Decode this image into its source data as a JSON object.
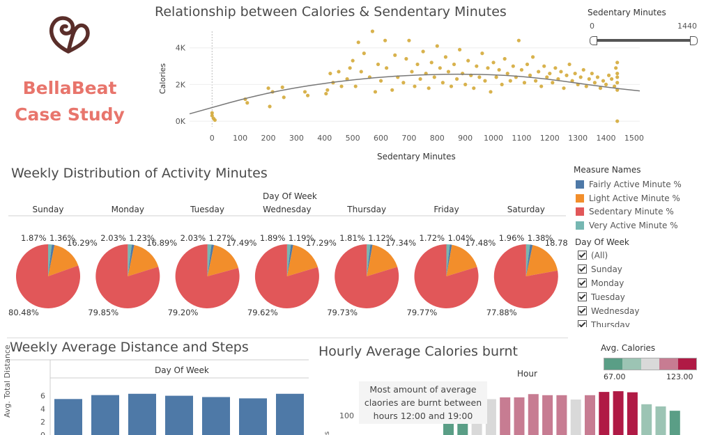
{
  "brand": {
    "line1": "BellaBeat",
    "line2": "Case Study",
    "logo_icon": "heart-swirl-icon",
    "logo_color": "#5a2e2a",
    "text_color": "#e8756c"
  },
  "scatter_title": "Relationship between Calories & Sendentary Minutes",
  "slider": {
    "label": "Sedentary Minutes",
    "min_label": "0",
    "max_label": "1440",
    "min": 0,
    "max": 1440,
    "range": [
      0,
      1440
    ]
  },
  "weekly_title": "Weekly Distribution of Activity Minutes",
  "distance_title": "Weekly Average Distance and Steps",
  "hourly_title": "Hourly Average Calories burnt",
  "annotation": {
    "line1": "Most amount of average",
    "line2": "claories are burnt between",
    "line3": "hours 12:00 and 19:00"
  },
  "legend": {
    "title": "Measure Names",
    "items": [
      {
        "label": "Fairly Active Minute %",
        "color": "#4e79a7"
      },
      {
        "label": "Light Active Minute %",
        "color": "#f28e2b"
      },
      {
        "label": "Sedentary Minute %",
        "color": "#e15759"
      },
      {
        "label": "Very Active Minute %",
        "color": "#76b7b2"
      }
    ]
  },
  "day_filter": {
    "title": "Day Of Week",
    "items": [
      "(All)",
      "Sunday",
      "Monday",
      "Tuesday",
      "Wednesday",
      "Thursday"
    ]
  },
  "avg_calories_legend": {
    "title": "Avg. Calories",
    "min_label": "67.00",
    "max_label": "123.00",
    "colors": [
      "#5a9e86",
      "#9cc4b4",
      "#d9d9d9",
      "#c77c92",
      "#b01a45"
    ]
  },
  "chart_data": [
    {
      "type": "scatter",
      "title": "Relationship between Calories & Sendentary Minutes",
      "xlabel": "Sedentary Minutes",
      "ylabel": "Calories",
      "x_ticks": [
        "0",
        "100",
        "200",
        "300",
        "400",
        "500",
        "600",
        "700",
        "800",
        "900",
        "1000",
        "1100",
        "1200",
        "1300",
        "1400",
        "1500"
      ],
      "y_ticks": [
        "0K",
        "2K",
        "4K"
      ],
      "xlim": [
        -80,
        1520
      ],
      "ylim": [
        -300,
        4900
      ],
      "trend": {
        "type": "polynomial",
        "points": [
          [
            -80,
            400
          ],
          [
            200,
            1600
          ],
          [
            500,
            2300
          ],
          [
            800,
            2600
          ],
          [
            1100,
            2500
          ],
          [
            1400,
            1850
          ],
          [
            1520,
            1650
          ]
        ]
      },
      "color": "#d4aa3a",
      "points": [
        [
          0,
          300
        ],
        [
          0,
          450
        ],
        [
          5,
          150
        ],
        [
          10,
          60
        ],
        [
          118,
          1200
        ],
        [
          125,
          1000
        ],
        [
          200,
          1800
        ],
        [
          205,
          800
        ],
        [
          215,
          1600
        ],
        [
          250,
          1850
        ],
        [
          255,
          1300
        ],
        [
          330,
          1600
        ],
        [
          340,
          1400
        ],
        [
          405,
          1500
        ],
        [
          410,
          1700
        ],
        [
          420,
          2600
        ],
        [
          430,
          2100
        ],
        [
          450,
          2700
        ],
        [
          460,
          1900
        ],
        [
          480,
          2300
        ],
        [
          490,
          2900
        ],
        [
          500,
          3300
        ],
        [
          510,
          1900
        ],
        [
          520,
          4300
        ],
        [
          530,
          2700
        ],
        [
          540,
          3700
        ],
        [
          560,
          2400
        ],
        [
          570,
          4900
        ],
        [
          580,
          1600
        ],
        [
          590,
          3100
        ],
        [
          600,
          2200
        ],
        [
          615,
          4400
        ],
        [
          620,
          2900
        ],
        [
          640,
          1700
        ],
        [
          650,
          3600
        ],
        [
          660,
          2400
        ],
        [
          680,
          2100
        ],
        [
          690,
          3400
        ],
        [
          700,
          4400
        ],
        [
          710,
          2700
        ],
        [
          720,
          1900
        ],
        [
          730,
          3100
        ],
        [
          740,
          2300
        ],
        [
          750,
          3800
        ],
        [
          760,
          2600
        ],
        [
          770,
          1800
        ],
        [
          780,
          3200
        ],
        [
          790,
          2400
        ],
        [
          800,
          4100
        ],
        [
          810,
          2900
        ],
        [
          820,
          2100
        ],
        [
          830,
          3500
        ],
        [
          840,
          2700
        ],
        [
          850,
          1900
        ],
        [
          860,
          3100
        ],
        [
          870,
          2300
        ],
        [
          880,
          3900
        ],
        [
          890,
          2600
        ],
        [
          900,
          2000
        ],
        [
          910,
          3300
        ],
        [
          920,
          2500
        ],
        [
          930,
          1800
        ],
        [
          940,
          3000
        ],
        [
          950,
          2400
        ],
        [
          960,
          3700
        ],
        [
          970,
          2200
        ],
        [
          980,
          2900
        ],
        [
          990,
          1600
        ],
        [
          1000,
          3200
        ],
        [
          1010,
          2400
        ],
        [
          1020,
          2800
        ],
        [
          1030,
          2000
        ],
        [
          1040,
          3400
        ],
        [
          1050,
          2600
        ],
        [
          1060,
          2200
        ],
        [
          1070,
          3000
        ],
        [
          1080,
          2400
        ],
        [
          1090,
          4400
        ],
        [
          1100,
          2800
        ],
        [
          1110,
          2100
        ],
        [
          1120,
          3100
        ],
        [
          1130,
          2500
        ],
        [
          1140,
          3500
        ],
        [
          1150,
          2200
        ],
        [
          1160,
          2700
        ],
        [
          1170,
          1900
        ],
        [
          1180,
          3000
        ],
        [
          1190,
          2400
        ],
        [
          1200,
          2600
        ],
        [
          1210,
          2100
        ],
        [
          1220,
          2900
        ],
        [
          1230,
          2300
        ],
        [
          1240,
          2700
        ],
        [
          1250,
          1800
        ],
        [
          1260,
          2500
        ],
        [
          1270,
          3100
        ],
        [
          1280,
          2200
        ],
        [
          1290,
          2600
        ],
        [
          1300,
          2000
        ],
        [
          1310,
          2400
        ],
        [
          1320,
          2800
        ],
        [
          1330,
          1900
        ],
        [
          1340,
          2300
        ],
        [
          1350,
          2600
        ],
        [
          1360,
          2100
        ],
        [
          1370,
          2400
        ],
        [
          1380,
          1800
        ],
        [
          1390,
          2200
        ],
        [
          1400,
          2000
        ],
        [
          1410,
          2500
        ],
        [
          1420,
          2300
        ],
        [
          1430,
          1900
        ],
        [
          1435,
          2900
        ],
        [
          1440,
          3200
        ],
        [
          1440,
          2600
        ],
        [
          1440,
          2100
        ],
        [
          1440,
          1700
        ],
        [
          1440,
          2400
        ],
        [
          1440,
          0
        ]
      ]
    },
    {
      "type": "pie",
      "title": "Weekly Distribution of Activity Minutes",
      "column_header": "Day Of Week",
      "categories": [
        "Sunday",
        "Monday",
        "Tuesday",
        "Wednesday",
        "Thursday",
        "Friday",
        "Saturday"
      ],
      "series_order": [
        "Very Active Minute %",
        "Fairly Active Minute %",
        "Light Active Minute %",
        "Sedentary Minute %"
      ],
      "colors": [
        "#76b7b2",
        "#4e79a7",
        "#f28e2b",
        "#e15759"
      ],
      "pies": [
        {
          "values": [
            1.87,
            1.36,
            16.29,
            80.48
          ],
          "labels": [
            "1.87%",
            "1.36%",
            "16.29%",
            "80.48%"
          ]
        },
        {
          "values": [
            2.03,
            1.23,
            16.89,
            79.85
          ],
          "labels": [
            "2.03%",
            "1.23%",
            "16.89%",
            "79.85%"
          ]
        },
        {
          "values": [
            2.03,
            1.27,
            17.49,
            79.2
          ],
          "labels": [
            "2.03%",
            "1.27%",
            "17.49%",
            "79.20%"
          ]
        },
        {
          "values": [
            1.89,
            1.19,
            17.29,
            79.62
          ],
          "labels": [
            "1.89%",
            "1.19%",
            "17.29%",
            "79.62%"
          ]
        },
        {
          "values": [
            1.81,
            1.12,
            17.34,
            79.73
          ],
          "labels": [
            "1.81%",
            "1.12%",
            "17.34%",
            "79.73%"
          ]
        },
        {
          "values": [
            1.72,
            1.04,
            17.48,
            79.77
          ],
          "labels": [
            "1.72%",
            "1.04%",
            "17.48%",
            "79.77%"
          ]
        },
        {
          "values": [
            1.96,
            1.38,
            18.78,
            77.88
          ],
          "labels": [
            "1.96%",
            "1.38%",
            "18.78%",
            "77.88%"
          ]
        }
      ]
    },
    {
      "type": "bar",
      "title": "Weekly Average Distance and Steps",
      "column_header": "Day Of Week",
      "ylabel": "Avg. Total Distance",
      "y_ticks": [
        "0",
        "2",
        "4",
        "6"
      ],
      "ylim": [
        0,
        7
      ],
      "color": "#4e79a7",
      "values": [
        5.5,
        6.1,
        6.3,
        6.0,
        5.8,
        5.6,
        6.3
      ]
    },
    {
      "type": "bar",
      "title": "Hourly Average Calories burnt",
      "column_header": "Hour",
      "ylabel": "",
      "y_ticks": [
        "100"
      ],
      "ylim": [
        0,
        130
      ],
      "color_range": [
        67,
        123
      ],
      "values": [
        67,
        73,
        96,
        99,
        104,
        104,
        113,
        110,
        110,
        98,
        110,
        119,
        121,
        118,
        85,
        79,
        67
      ]
    }
  ]
}
